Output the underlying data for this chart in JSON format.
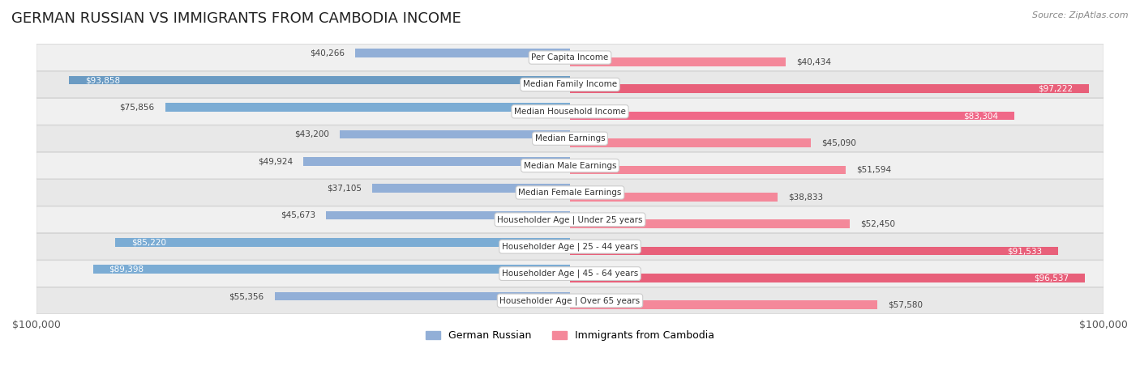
{
  "title": "GERMAN RUSSIAN VS IMMIGRANTS FROM CAMBODIA INCOME",
  "source": "Source: ZipAtlas.com",
  "categories": [
    "Per Capita Income",
    "Median Family Income",
    "Median Household Income",
    "Median Earnings",
    "Median Male Earnings",
    "Median Female Earnings",
    "Householder Age | Under 25 years",
    "Householder Age | 25 - 44 years",
    "Householder Age | 45 - 64 years",
    "Householder Age | Over 65 years"
  ],
  "german_russian": [
    40266,
    93858,
    75856,
    43200,
    49924,
    37105,
    45673,
    85220,
    89398,
    55356
  ],
  "cambodia": [
    40434,
    97222,
    83304,
    45090,
    51594,
    38833,
    52450,
    91533,
    96537,
    57580
  ],
  "max_value": 100000,
  "blue_color": "#92afd7",
  "pink_color": "#f4889a",
  "blue_dark": "#6b9bc3",
  "pink_dark": "#f06080",
  "row_bg_odd": "#f0f0f0",
  "row_bg_even": "#e8e8e8",
  "label_bg": "#ffffff",
  "legend_blue": "#92afd7",
  "legend_pink": "#f4889a"
}
